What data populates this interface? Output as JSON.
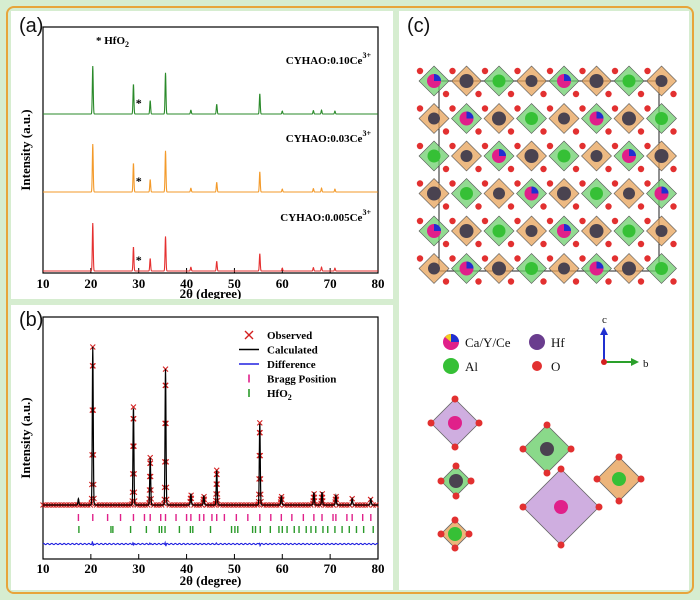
{
  "figure": {
    "panel_a_label": "(a)",
    "panel_b_label": "(b)",
    "panel_c_label": "(c)"
  },
  "chart_data": [
    {
      "type": "line",
      "panel": "a",
      "ylabel": "Intensity (a.u.)",
      "xlabel": "2θ (degree)",
      "xlim": [
        10,
        80
      ],
      "x_ticks": [
        10,
        20,
        30,
        40,
        50,
        60,
        70,
        80
      ],
      "annotation": "* HfO",
      "annotation_sub": "2",
      "impurity_marker": "*",
      "impurity_marker_x": 30,
      "series": [
        {
          "name": "CYHAO:0.10Ce",
          "name_sup": "3+",
          "color": "#2a8a2a",
          "peaks": [
            {
              "x": 20.4,
              "h": 1.0
            },
            {
              "x": 28.9,
              "h": 0.62
            },
            {
              "x": 32.4,
              "h": 0.28
            },
            {
              "x": 35.6,
              "h": 0.86
            },
            {
              "x": 40.9,
              "h": 0.08
            },
            {
              "x": 46.3,
              "h": 0.2
            },
            {
              "x": 55.3,
              "h": 0.42
            },
            {
              "x": 60.0,
              "h": 0.06
            },
            {
              "x": 66.5,
              "h": 0.07
            },
            {
              "x": 68.2,
              "h": 0.08
            },
            {
              "x": 71.0,
              "h": 0.06
            }
          ]
        },
        {
          "name": "CYHAO:0.03Ce",
          "name_sup": "3+",
          "color": "#f39a2a",
          "peaks": [
            {
              "x": 20.4,
              "h": 1.0
            },
            {
              "x": 28.9,
              "h": 0.6
            },
            {
              "x": 32.4,
              "h": 0.26
            },
            {
              "x": 35.6,
              "h": 0.86
            },
            {
              "x": 40.9,
              "h": 0.08
            },
            {
              "x": 46.3,
              "h": 0.2
            },
            {
              "x": 55.3,
              "h": 0.42
            },
            {
              "x": 60.0,
              "h": 0.06
            },
            {
              "x": 66.5,
              "h": 0.07
            },
            {
              "x": 68.2,
              "h": 0.08
            },
            {
              "x": 71.0,
              "h": 0.06
            }
          ]
        },
        {
          "name": "CYHAO:0.005Ce",
          "name_sup": "3+",
          "color": "#e53030",
          "peaks": [
            {
              "x": 20.4,
              "h": 1.0
            },
            {
              "x": 28.9,
              "h": 0.5
            },
            {
              "x": 32.4,
              "h": 0.26
            },
            {
              "x": 35.6,
              "h": 0.72
            },
            {
              "x": 40.9,
              "h": 0.08
            },
            {
              "x": 46.3,
              "h": 0.2
            },
            {
              "x": 55.3,
              "h": 0.36
            },
            {
              "x": 60.0,
              "h": 0.06
            },
            {
              "x": 66.5,
              "h": 0.07
            },
            {
              "x": 68.2,
              "h": 0.08
            },
            {
              "x": 71.0,
              "h": 0.06
            }
          ]
        }
      ]
    },
    {
      "type": "scatter",
      "panel": "b",
      "ylabel": "Intensity (a.u.)",
      "xlabel": "2θ (degree)",
      "xlim": [
        10,
        80
      ],
      "x_ticks": [
        10,
        20,
        30,
        40,
        50,
        60,
        70,
        80
      ],
      "legend_position": "top-right",
      "legend": [
        {
          "label": "Observed",
          "marker": "x",
          "color": "#d42020"
        },
        {
          "label": "Calculated",
          "marker": "line",
          "color": "#000000"
        },
        {
          "label": "Difference",
          "marker": "line",
          "color": "#2020e0"
        },
        {
          "label": "Bragg Position",
          "marker": "tick",
          "color": "#e0208a"
        },
        {
          "label": "HfO",
          "label_sub": "2",
          "marker": "tick",
          "color": "#2a9a2a"
        }
      ],
      "peaks": [
        {
          "x": 17.4,
          "h": 0.04
        },
        {
          "x": 20.4,
          "h": 1.0
        },
        {
          "x": 28.9,
          "h": 0.62
        },
        {
          "x": 32.4,
          "h": 0.3
        },
        {
          "x": 35.6,
          "h": 0.86
        },
        {
          "x": 40.9,
          "h": 0.07
        },
        {
          "x": 43.6,
          "h": 0.06
        },
        {
          "x": 46.3,
          "h": 0.22
        },
        {
          "x": 55.3,
          "h": 0.52
        },
        {
          "x": 59.8,
          "h": 0.06
        },
        {
          "x": 66.6,
          "h": 0.08
        },
        {
          "x": 68.3,
          "h": 0.08
        },
        {
          "x": 71.2,
          "h": 0.06
        },
        {
          "x": 74.6,
          "h": 0.04
        },
        {
          "x": 78.5,
          "h": 0.04
        }
      ],
      "bragg_positions": [
        17.4,
        20.4,
        23.5,
        26.2,
        28.9,
        31.2,
        32.4,
        34.6,
        35.6,
        37.8,
        40.0,
        40.9,
        42.7,
        43.6,
        45.3,
        46.3,
        47.9,
        50.4,
        52.8,
        55.3,
        57.6,
        59.8,
        62.0,
        64.4,
        66.6,
        68.3,
        70.6,
        71.2,
        73.5,
        74.6,
        76.8,
        78.5
      ],
      "hfo2_positions": [
        17.5,
        24.2,
        24.6,
        28.3,
        31.6,
        34.3,
        34.8,
        35.5,
        38.5,
        40.8,
        41.3,
        45.0,
        49.4,
        50.1,
        50.7,
        53.8,
        54.4,
        55.4,
        57.5,
        59.3,
        60.0,
        61.0,
        62.5,
        63.5,
        65.0,
        66.0,
        67.0,
        68.5,
        69.5,
        71.0,
        72.5,
        74.0,
        75.5,
        77.0,
        79.0
      ]
    }
  ],
  "structure": {
    "legend": {
      "site_mix": "Ca/Y/Ce",
      "hf": "Hf",
      "al": "Al",
      "o": "O"
    },
    "axes": {
      "c": "c",
      "b": "b"
    },
    "colors": {
      "site_magenta": "#e0208a",
      "site_blue": "#2030d0",
      "site_yellow": "#f0d020",
      "hf": "#4a4350",
      "al": "#36c036",
      "o": "#e23030",
      "octa_green": "#6dcf6d",
      "octa_orange": "#e7a35a",
      "octa_purple": "#c39ad8"
    }
  }
}
